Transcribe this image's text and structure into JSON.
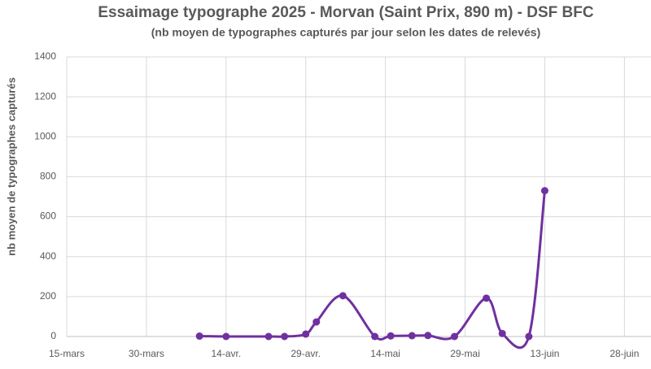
{
  "chart_data": {
    "type": "line",
    "title": "Essaimage typographe 2025 - Morvan (Saint Prix, 890 m) - DSF BFC",
    "subtitle": "(nb moyen de typographes capturés par jour selon les dates de relevés)",
    "y_label": "nb moyen de typographes capturés",
    "x": [
      "04-09",
      "04-14",
      "04-22",
      "04-25",
      "04-29",
      "05-01",
      "05-06",
      "05-12",
      "05-15",
      "05-19",
      "05-22",
      "05-27",
      "06-02",
      "06-05",
      "06-10",
      "06-13"
    ],
    "series": [
      {
        "name": "nb moyen de typographes capturés",
        "color": "#7030a0",
        "values": [
          2,
          0,
          0,
          0,
          12,
          73,
          204,
          0,
          3,
          4,
          5,
          0,
          192,
          15,
          0,
          730
        ]
      }
    ],
    "xlim": [
      "03-15",
      "07-03"
    ],
    "xticks": [
      {
        "value": "03-15",
        "label": "15-mars"
      },
      {
        "value": "03-30",
        "label": "30-mars"
      },
      {
        "value": "04-14",
        "label": "14-avr."
      },
      {
        "value": "04-29",
        "label": "29-avr."
      },
      {
        "value": "05-14",
        "label": "14-mai"
      },
      {
        "value": "05-29",
        "label": "29-mai"
      },
      {
        "value": "06-13",
        "label": "13-juin"
      },
      {
        "value": "06-28",
        "label": "28-juin"
      }
    ],
    "ylim": [
      0,
      1400
    ],
    "yticks": [
      0,
      200,
      400,
      600,
      800,
      1000,
      1200,
      1400
    ],
    "grid": true,
    "smooth": true
  }
}
